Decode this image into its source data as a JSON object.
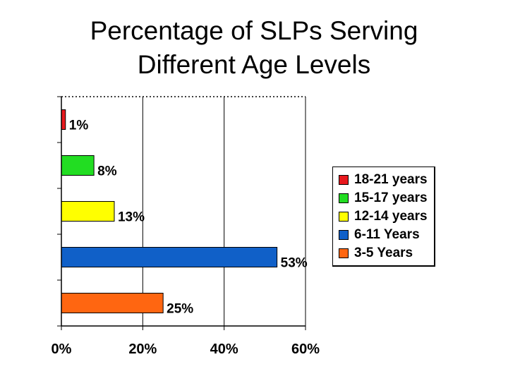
{
  "title_lines": [
    "Percentage of SLPs Serving",
    "Different Age Levels"
  ],
  "chart_data": {
    "type": "bar",
    "orientation": "horizontal",
    "categories": [
      "18-21 years",
      "15-17 years",
      "12-14 years",
      "6-11 Years",
      "3-5 Years"
    ],
    "values": [
      1,
      8,
      13,
      53,
      25
    ],
    "value_labels": [
      "1%",
      "8%",
      "13%",
      "53%",
      "25%"
    ],
    "colors": [
      "#e8191e",
      "#22dd22",
      "#ffff00",
      "#1060c8",
      "#ff6611"
    ],
    "xlim": [
      0,
      60
    ],
    "x_ticks": [
      0,
      20,
      40,
      60
    ],
    "x_tick_labels": [
      "0%",
      "20%",
      "40%",
      "60%"
    ],
    "grid": "vertical major lines",
    "legend_position": "right",
    "title": "Percentage of SLPs Serving Different Age Levels",
    "xlabel": "",
    "ylabel": ""
  },
  "legend": [
    {
      "label": "18-21 years",
      "color": "#e8191e"
    },
    {
      "label": "15-17 years",
      "color": "#22dd22"
    },
    {
      "label": "12-14 years",
      "color": "#ffff00"
    },
    {
      "label": "6-11 Years",
      "color": "#1060c8"
    },
    {
      "label": "3-5 Years",
      "color": "#ff6611"
    }
  ]
}
